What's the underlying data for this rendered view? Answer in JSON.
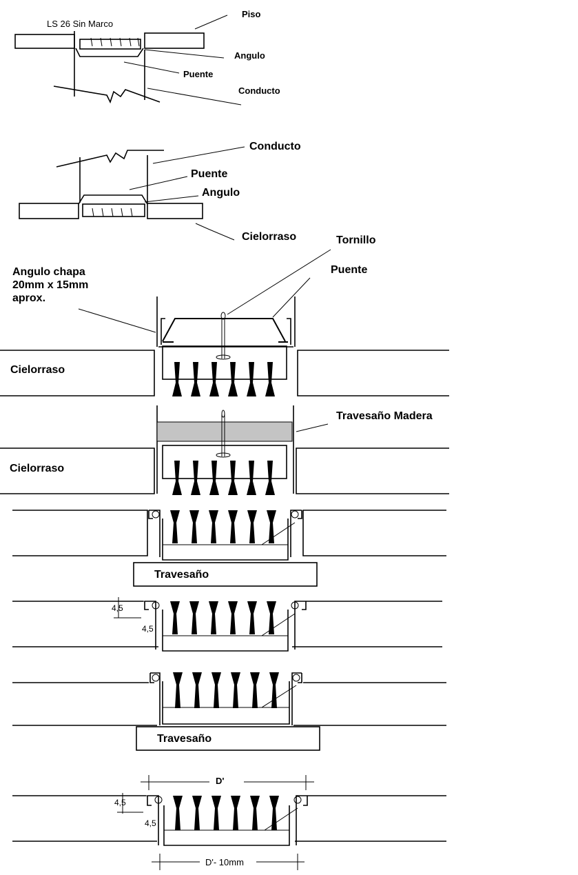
{
  "labels": {
    "model": "LS 26 Sin Marco",
    "piso": "Piso",
    "angulo_1": "Angulo",
    "puente_1": "Puente",
    "conducto_1": "Conducto",
    "conducto_2": "Conducto",
    "puente_2": "Puente",
    "angulo_2": "Angulo",
    "cielorraso_1": "Cielorraso",
    "tornillo": "Tornillo",
    "puente_3": "Puente",
    "angulo_chapa_1": "Angulo chapa",
    "angulo_chapa_2": "20mm x 15mm",
    "angulo_chapa_3": "aprox.",
    "cielorraso_2": "Cielorraso",
    "travesano_madera": "Travesaño Madera",
    "cielorraso_3": "Cielorraso",
    "travesano_1": "Travesaño",
    "travesano_2": "Travesaño"
  },
  "dimensions": {
    "d1_a": "4,5",
    "d1_b": "4,5",
    "d2_a": "4,5",
    "d2_b": "4,5",
    "d_top": "D'",
    "d_bottom": "D'- 10mm"
  }
}
